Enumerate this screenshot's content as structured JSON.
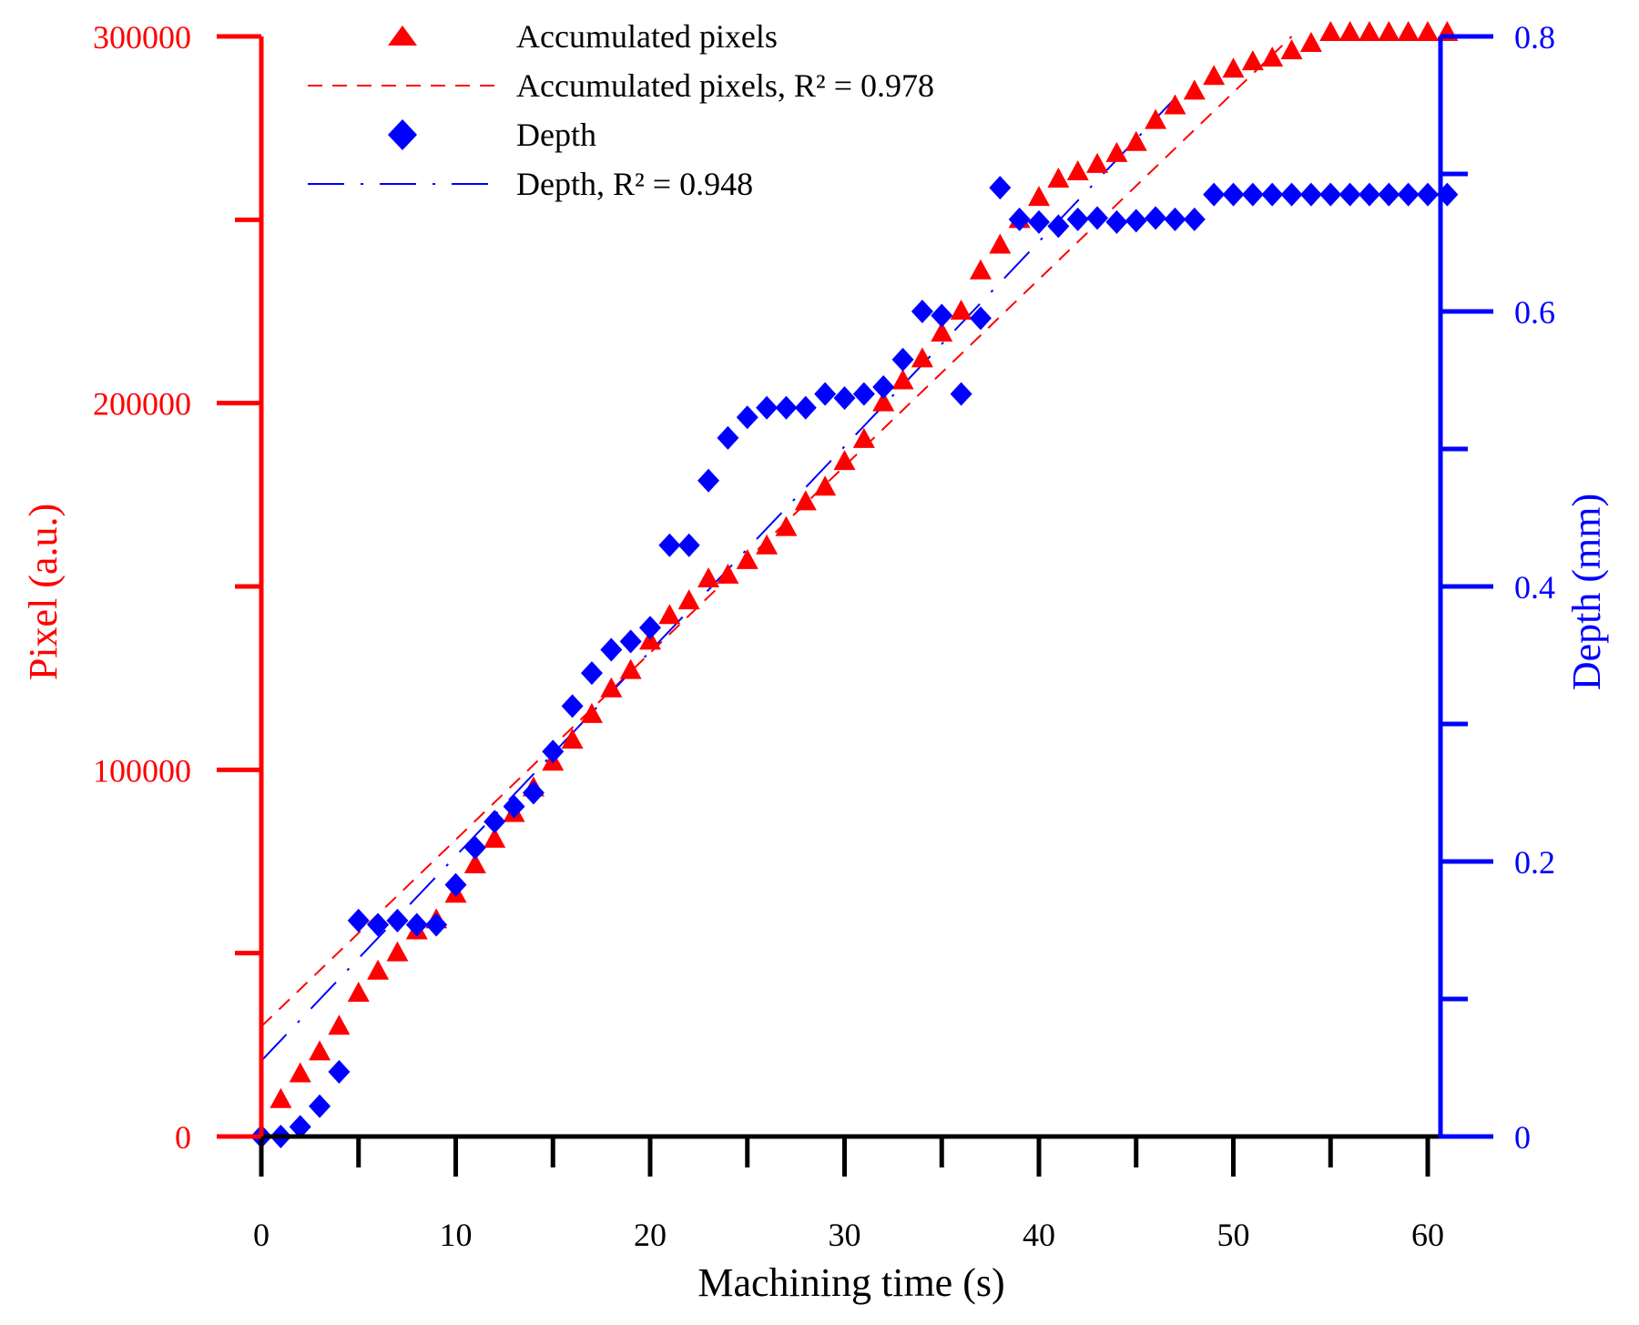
{
  "chart_data": {
    "type": "scatter",
    "xlabel": "Machining time (s)",
    "ylabel_left": "Pixel (a.u.)",
    "ylabel_right": "Depth (mm)",
    "xlim": [
      0,
      61
    ],
    "ylim_left": [
      0,
      300000
    ],
    "ylim_right": [
      0,
      0.8
    ],
    "x_ticks": [
      0,
      10,
      20,
      30,
      40,
      50,
      60
    ],
    "y_left_ticks": [
      0,
      100000,
      200000,
      300000
    ],
    "y_left_minor_ticks": [
      50000,
      150000,
      250000
    ],
    "y_right_ticks": [
      0,
      0.2,
      0.4,
      0.6,
      0.8
    ],
    "y_right_tick_labels": [
      "0",
      "0.2",
      "0.4",
      "0.6",
      "0.8"
    ],
    "y_right_minor_ticks": [
      0.1,
      0.3,
      0.5,
      0.7
    ],
    "grid": false,
    "legend_position": "top-left",
    "legend": [
      {
        "label": "Accumulated pixels",
        "kind": "marker-triangle",
        "color": "#ff0000"
      },
      {
        "label": "Accumulated pixels, R² = 0.978",
        "kind": "dash",
        "color": "#ff0000"
      },
      {
        "label": "Depth",
        "kind": "marker-diamond",
        "color": "#0000ff"
      },
      {
        "label": "Depth, R² = 0.948",
        "kind": "dashdot",
        "color": "#0000ff"
      }
    ],
    "series": [
      {
        "name": "Accumulated pixels",
        "axis": "left",
        "marker": "triangle",
        "color": "#ff0000",
        "x": [
          1,
          2,
          3,
          4,
          5,
          6,
          7,
          8,
          9,
          10,
          11,
          12,
          13,
          14,
          15,
          16,
          17,
          18,
          19,
          20,
          21,
          22,
          23,
          24,
          25,
          26,
          27,
          28,
          29,
          30,
          31,
          32,
          33,
          34,
          35,
          36,
          37,
          38,
          39,
          40,
          41,
          42,
          43,
          44,
          45,
          46,
          47,
          48,
          49,
          50,
          51,
          52,
          53,
          54,
          55,
          56,
          57,
          58,
          59,
          60,
          61
        ],
        "values": [
          10000,
          17000,
          23000,
          30000,
          39000,
          45000,
          50000,
          56000,
          59000,
          66000,
          74000,
          81000,
          88000,
          95000,
          102000,
          108000,
          115000,
          122000,
          127000,
          135000,
          142000,
          146000,
          152000,
          153000,
          157000,
          161000,
          166000,
          173000,
          177000,
          184000,
          190000,
          200000,
          206000,
          212000,
          219000,
          225000,
          236000,
          243000,
          250000,
          256000,
          261000,
          263000,
          265000,
          268000,
          271000,
          277000,
          281000,
          285000,
          289000,
          291000,
          293000,
          294000,
          296000,
          298000,
          301000,
          301000,
          301000,
          301000,
          301000,
          301000,
          301000
        ]
      },
      {
        "name": "Depth",
        "axis": "right",
        "marker": "diamond",
        "color": "#0000ff",
        "x": [
          0,
          1,
          2,
          3,
          4,
          5,
          6,
          7,
          8,
          9,
          10,
          11,
          12,
          13,
          14,
          15,
          16,
          17,
          18,
          19,
          20,
          21,
          22,
          23,
          24,
          25,
          26,
          27,
          28,
          29,
          30,
          31,
          32,
          33,
          34,
          35,
          36,
          37,
          38,
          39,
          40,
          41,
          42,
          43,
          44,
          45,
          46,
          47,
          48,
          49,
          50,
          51,
          52,
          53,
          54,
          55,
          56,
          57,
          58,
          59,
          60,
          61
        ],
        "values": [
          0,
          0,
          0.007,
          0.022,
          0.047,
          0.157,
          0.154,
          0.157,
          0.154,
          0.154,
          0.183,
          0.21,
          0.229,
          0.24,
          0.25,
          0.28,
          0.313,
          0.337,
          0.354,
          0.36,
          0.37,
          0.43,
          0.43,
          0.477,
          0.508,
          0.523,
          0.53,
          0.53,
          0.53,
          0.54,
          0.537,
          0.54,
          0.545,
          0.565,
          0.6,
          0.597,
          0.54,
          0.595,
          0.69,
          0.667,
          0.665,
          0.662,
          0.667,
          0.668,
          0.665,
          0.666,
          0.668,
          0.667,
          0.667,
          0.685,
          0.685,
          0.685,
          0.685,
          0.685,
          0.685,
          0.685,
          0.685,
          0.685,
          0.685,
          0.685,
          0.685,
          0.685
        ]
      },
      {
        "name": "Accumulated pixels, R² = 0.978",
        "axis": "left",
        "kind": "fit-dash",
        "color": "#ff0000",
        "x": [
          0,
          53
        ],
        "values": [
          30000,
          300000
        ]
      },
      {
        "name": "Depth, R² = 0.948",
        "axis": "right",
        "kind": "fit-dashdot",
        "color": "#0000ff",
        "x": [
          0,
          47
        ],
        "values": [
          0.055,
          0.755
        ]
      }
    ]
  }
}
